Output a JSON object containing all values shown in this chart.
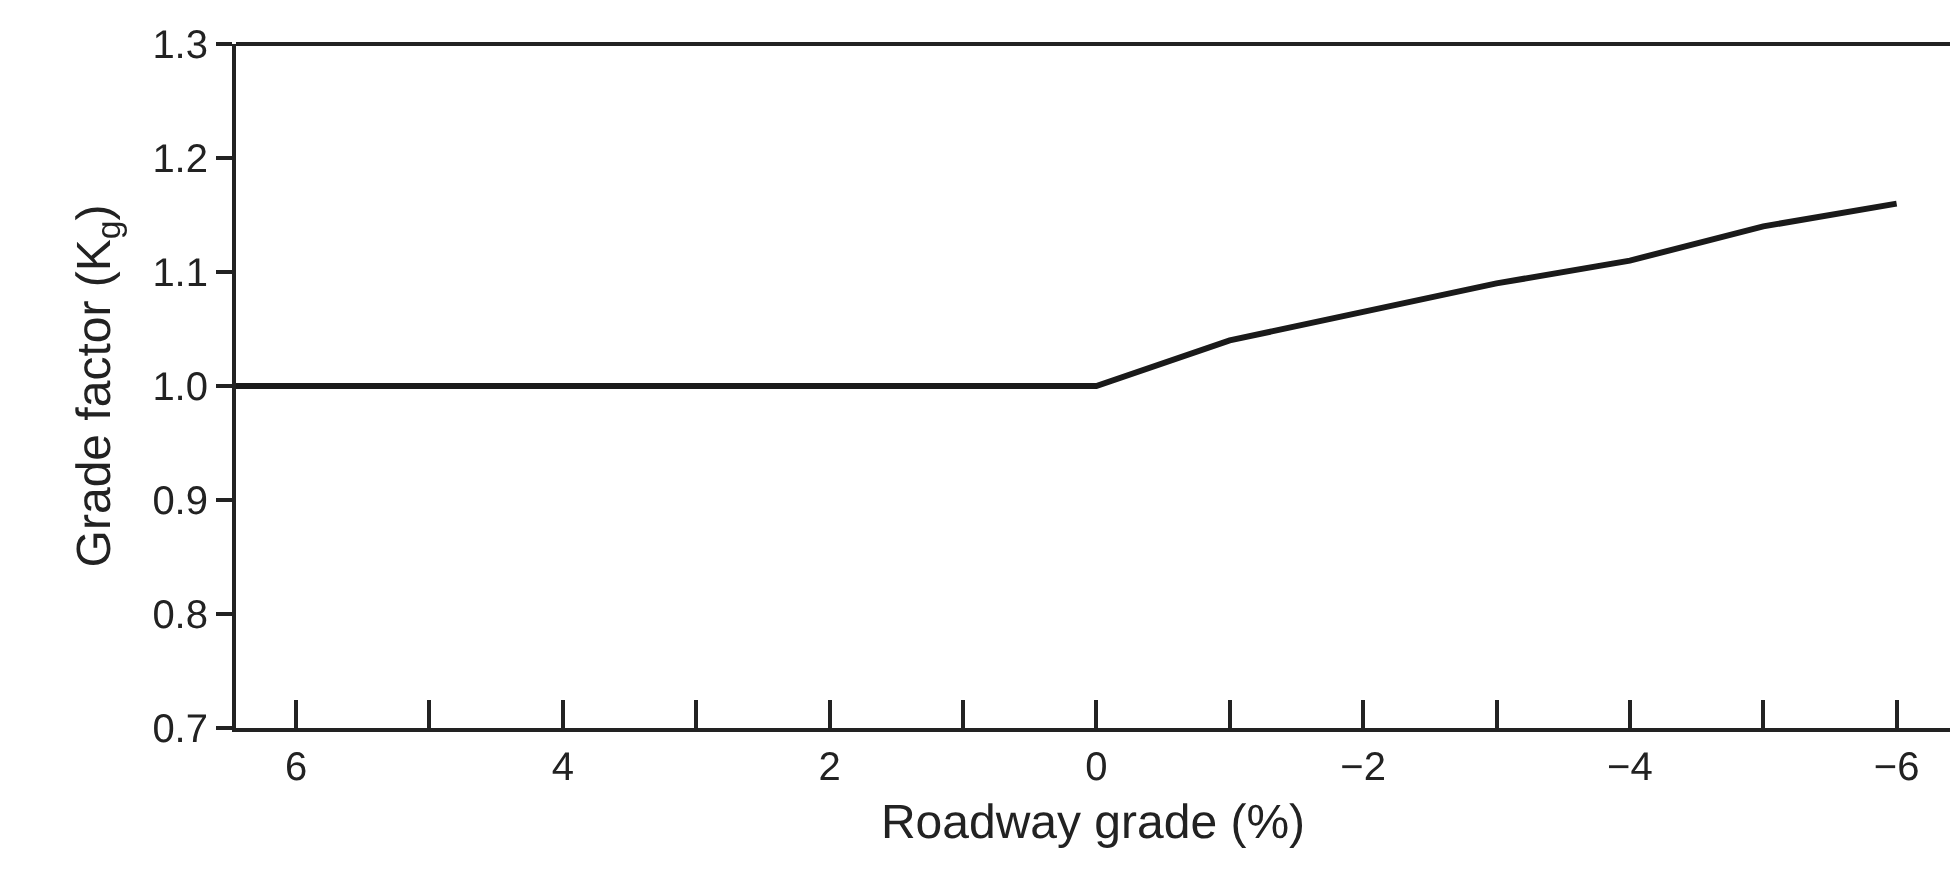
{
  "chart_data": {
    "type": "line",
    "xlabel": "Roadway grade (%)",
    "ylabel": "Grade factor (K$_{g}$)",
    "x": [
      6.45,
      0,
      -1,
      -2,
      -3,
      -4,
      -5,
      -6
    ],
    "series": [
      {
        "color": "#1a1a1a",
        "values": [
          1.0,
          1.0,
          1.04,
          1.065,
          1.09,
          1.11,
          1.14,
          1.16
        ]
      }
    ],
    "xlim": [
      6.45,
      -6.4
    ],
    "xticks": [
      6,
      {
        "value": 5,
        "label": null
      },
      4,
      {
        "value": 3,
        "label": null
      },
      2,
      {
        "value": 1,
        "label": null
      },
      0,
      {
        "value": -1,
        "label": null
      },
      {
        "value": -2,
        "label": "−2"
      },
      {
        "value": -3,
        "label": null
      },
      {
        "value": -4,
        "label": "−4"
      },
      {
        "value": -5,
        "label": null
      },
      {
        "value": -6,
        "label": "−6"
      }
    ],
    "ylim": [
      0.7,
      1.3
    ],
    "yticks": [
      {
        "value": 0.7,
        "label": "0.7"
      },
      {
        "value": 0.8,
        "label": "0.8"
      },
      {
        "value": 0.9,
        "label": "0.9"
      },
      {
        "value": 1.0,
        "label": "1.0"
      },
      {
        "value": 1.1,
        "label": "1.1"
      },
      {
        "value": 1.2,
        "label": "1.2"
      },
      {
        "value": 1.3,
        "label": "1.3"
      }
    ],
    "marker": "none",
    "line_style": "solid"
  }
}
